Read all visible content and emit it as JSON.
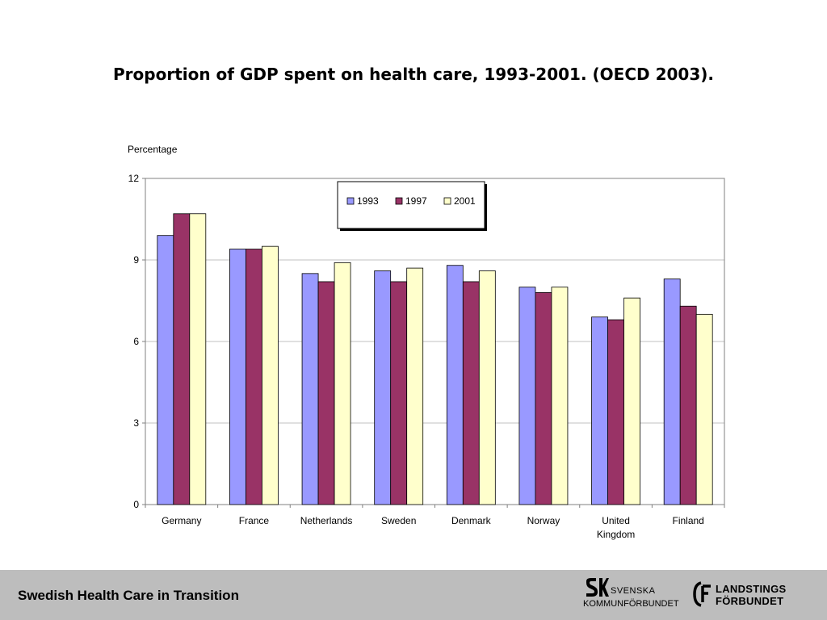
{
  "slide": {
    "title": "Proportion of GDP spent on health care, 1993-2001. (OECD 2003)."
  },
  "footer": {
    "title": "Swedish Health Care in Transition",
    "logo_sk_name": "SVENSKA",
    "logo_sk_sub": "KOMMUNFÖRBUNDET",
    "logo_lf_line1": "LANDSTINGS",
    "logo_lf_line2": "FÖRBUNDET"
  },
  "chart_data": {
    "type": "bar",
    "title": "",
    "ylabel": "Percentage",
    "xlabel": "",
    "ylim": [
      0,
      12
    ],
    "yticks": [
      0,
      3,
      6,
      9,
      12
    ],
    "grid": true,
    "legend_position": "top-center",
    "categories": [
      [
        "Germany"
      ],
      [
        "France"
      ],
      [
        "Netherlands"
      ],
      [
        "Sweden"
      ],
      [
        "Denmark"
      ],
      [
        "Norway"
      ],
      [
        "United",
        "Kingdom"
      ],
      [
        "Finland"
      ]
    ],
    "series": [
      {
        "name": "1993",
        "color": "#9999ff",
        "values": [
          9.9,
          9.4,
          8.5,
          8.6,
          8.8,
          8.0,
          6.9,
          8.3
        ]
      },
      {
        "name": "1997",
        "color": "#993366",
        "values": [
          10.7,
          9.4,
          8.2,
          8.2,
          8.2,
          7.8,
          6.8,
          7.3
        ]
      },
      {
        "name": "2001",
        "color": "#ffffcc",
        "values": [
          10.7,
          9.5,
          8.9,
          8.7,
          8.6,
          8.0,
          7.6,
          7.0
        ]
      }
    ]
  }
}
